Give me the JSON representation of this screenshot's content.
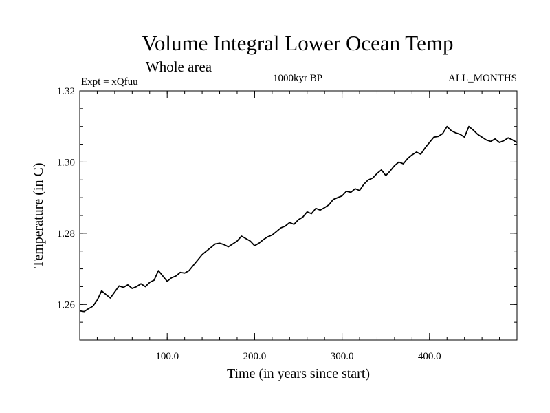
{
  "chart_data": {
    "type": "line",
    "title": "Volume Integral Lower Ocean Temp",
    "subtitle": "Whole area",
    "header_left": "Expt = xQfuu",
    "header_center": "1000kyr BP",
    "header_right": "ALL_MONTHS",
    "xlabel": "Time (in years since start)",
    "ylabel": "Temperature (in C)",
    "xlim": [
      0,
      500
    ],
    "ylim": [
      1.25,
      1.32
    ],
    "xticks": [
      100,
      200,
      300,
      400
    ],
    "xtick_labels": [
      "100.0",
      "200.0",
      "300.0",
      "400.0"
    ],
    "yticks": [
      1.26,
      1.28,
      1.3,
      1.32
    ],
    "ytick_labels": [
      "1.26",
      "1.28",
      "1.30",
      "1.32"
    ],
    "x_minor_step": 20,
    "y_minor_step": 0.005,
    "grid": false,
    "series": [
      {
        "name": "Temperature",
        "color": "#000000",
        "x": [
          0,
          5,
          10,
          15,
          20,
          25,
          30,
          35,
          40,
          45,
          50,
          55,
          60,
          65,
          70,
          75,
          80,
          85,
          90,
          95,
          100,
          105,
          110,
          115,
          120,
          125,
          130,
          135,
          140,
          145,
          150,
          155,
          160,
          165,
          170,
          175,
          180,
          185,
          190,
          195,
          200,
          205,
          210,
          215,
          220,
          225,
          230,
          235,
          240,
          245,
          250,
          255,
          260,
          265,
          270,
          275,
          280,
          285,
          290,
          295,
          300,
          305,
          310,
          315,
          320,
          325,
          330,
          335,
          340,
          345,
          350,
          355,
          360,
          365,
          370,
          375,
          380,
          385,
          390,
          395,
          400,
          405,
          410,
          415,
          420,
          425,
          430,
          435,
          440,
          445,
          450,
          455,
          460,
          465,
          470,
          475,
          480,
          485,
          490,
          495,
          500
        ],
        "values": [
          1.2582,
          1.258,
          1.2588,
          1.2595,
          1.2612,
          1.2638,
          1.2628,
          1.2618,
          1.2635,
          1.2652,
          1.2648,
          1.2655,
          1.2645,
          1.265,
          1.2658,
          1.265,
          1.2662,
          1.2668,
          1.2695,
          1.268,
          1.2665,
          1.2675,
          1.268,
          1.269,
          1.2688,
          1.2695,
          1.271,
          1.2725,
          1.274,
          1.275,
          1.276,
          1.277,
          1.2772,
          1.2768,
          1.2762,
          1.277,
          1.2778,
          1.2792,
          1.2785,
          1.2778,
          1.2765,
          1.2772,
          1.2782,
          1.279,
          1.2795,
          1.2805,
          1.2815,
          1.282,
          1.283,
          1.2825,
          1.2838,
          1.2845,
          1.286,
          1.2855,
          1.287,
          1.2865,
          1.2872,
          1.288,
          1.2895,
          1.29,
          1.2905,
          1.2918,
          1.2915,
          1.2925,
          1.292,
          1.2938,
          1.295,
          1.2955,
          1.2968,
          1.2978,
          1.2962,
          1.2975,
          1.299,
          1.3,
          1.2995,
          1.301,
          1.302,
          1.3028,
          1.3022,
          1.304,
          1.3055,
          1.307,
          1.3072,
          1.308,
          1.31,
          1.3088,
          1.3082,
          1.3078,
          1.307,
          1.31,
          1.309,
          1.3078,
          1.307,
          1.3062,
          1.3058,
          1.3065,
          1.3055,
          1.306,
          1.3068,
          1.3062,
          1.3055
        ]
      }
    ]
  }
}
